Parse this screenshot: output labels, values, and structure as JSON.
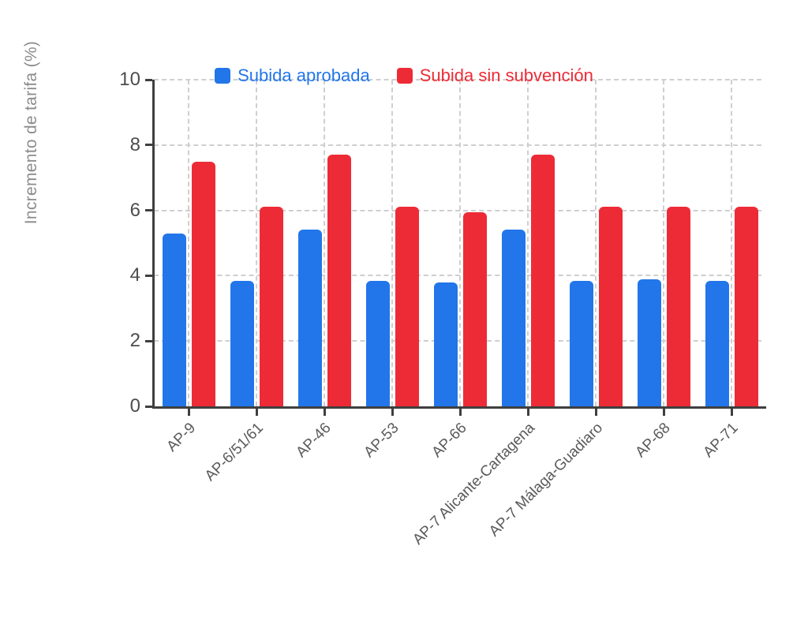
{
  "chart_data": {
    "type": "bar",
    "title": "",
    "ylabel": "Incremento de tarifa (%)",
    "xlabel": "",
    "categories": [
      "AP-9",
      "AP-6/51/61",
      "AP-46",
      "AP-53",
      "AP-66",
      "AP-7 Alicante-Cartagena",
      "AP-7 Málaga-Guadiaro",
      "AP-68",
      "AP-71"
    ],
    "series": [
      {
        "name": "Subida aprobada",
        "color": "#2276EA",
        "values": [
          5.3,
          3.85,
          5.4,
          3.85,
          3.8,
          5.4,
          3.85,
          3.9,
          3.85
        ]
      },
      {
        "name": "Subida sin subvención",
        "color": "#ED2B36",
        "values": [
          7.5,
          6.1,
          7.7,
          6.1,
          5.95,
          7.7,
          6.1,
          6.1,
          6.1
        ]
      }
    ],
    "ylim": [
      0,
      10
    ],
    "yticks": [
      0,
      2,
      4,
      6,
      8,
      10
    ],
    "grid": true,
    "legend_position": "top-center",
    "colors": {
      "axis": "#3f3f3f",
      "grid": "#cfcfcf",
      "y_tick_label": "#4d4d4d",
      "x_tick_label": "#5a5a5a",
      "axis_title": "#8c8c8c",
      "background": "#ffffff"
    }
  }
}
